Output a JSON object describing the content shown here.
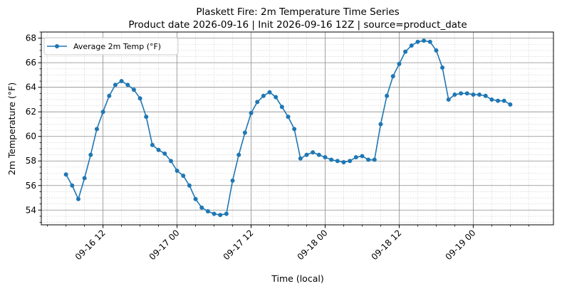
{
  "chart_data": {
    "type": "line",
    "title": "Plaskett Fire: 2m Temperature Time Series",
    "subtitle": "Product date 2026-09-16 | Init 2026-09-16 12Z | source=product_date",
    "xlabel": "Time (local)",
    "ylabel": "2m Temperature (°F)",
    "xlim": [
      "2026-09-16 02:00",
      "2026-09-19 13:00"
    ],
    "ylim": [
      52.8,
      68.5
    ],
    "x_ticks": [
      "09-16 12",
      "09-17 00",
      "09-17 12",
      "09-18 00",
      "09-18 12",
      "09-19 00"
    ],
    "y_ticks": [
      54,
      56,
      58,
      60,
      62,
      64,
      66,
      68
    ],
    "grid": "major and minor",
    "legend_position": "upper-left",
    "series": [
      {
        "name": "Average 2m Temp (°F)",
        "color": "#1f77b4",
        "marker": "circle",
        "start": "2026-09-16 06:00",
        "step_hours": 1,
        "values": [
          56.9,
          56.0,
          54.9,
          56.6,
          58.5,
          60.6,
          62.0,
          63.3,
          64.2,
          64.5,
          64.2,
          63.8,
          63.1,
          61.6,
          59.3,
          58.9,
          58.6,
          58.0,
          57.2,
          56.8,
          56.0,
          54.9,
          54.2,
          53.9,
          53.7,
          53.6,
          53.7,
          56.4,
          58.5,
          60.3,
          61.9,
          62.8,
          63.3,
          63.6,
          63.2,
          62.4,
          61.6,
          60.6,
          58.2,
          58.5,
          58.7,
          58.5,
          58.3,
          58.1,
          58.0,
          57.9,
          58.0,
          58.3,
          58.4,
          58.1,
          58.1,
          61.0,
          63.3,
          64.9,
          65.9,
          66.9,
          67.4,
          67.7,
          67.8,
          67.7,
          67.0,
          65.6,
          63.0,
          63.4,
          63.5,
          63.5,
          63.4,
          63.4,
          63.3,
          63.0,
          62.9,
          62.9,
          62.6
        ]
      }
    ]
  }
}
